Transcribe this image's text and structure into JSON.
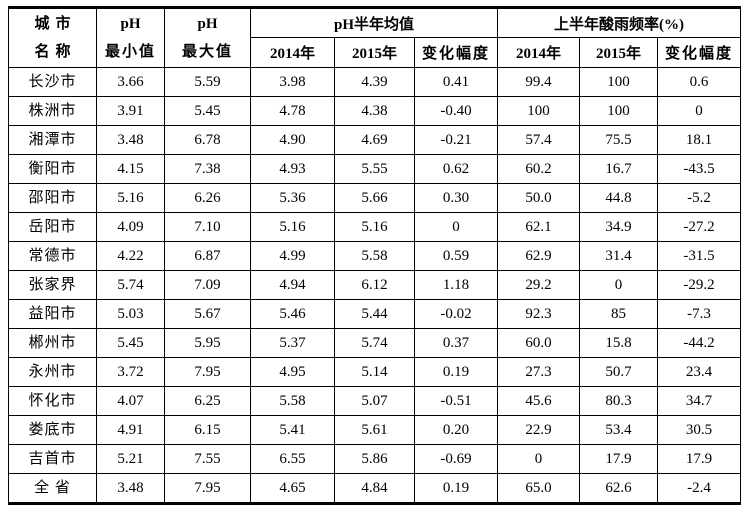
{
  "table": {
    "title_semantic": "pH与酸雨频率统计表",
    "header": {
      "city_line1": "城市",
      "city_line2": "名称",
      "ph_label": "pH",
      "min_label": "最小值",
      "max_label": "最大值",
      "ph_avg_group": "pH半年均值",
      "acid_rain_group": "上半年酸雨频率(%)",
      "year_2014": "2014年",
      "year_2015": "2015年",
      "change_label": "变化幅度"
    },
    "columns_semantic": [
      "城市名称",
      "pH最小值",
      "pH最大值",
      "pH半年均值2014年",
      "pH半年均值2015年",
      "pH半年均值变化幅度",
      "上半年酸雨频率2014年",
      "上半年酸雨频率2015年",
      "上半年酸雨频率变化幅度"
    ],
    "rows": [
      [
        "长沙市",
        "3.66",
        "5.59",
        "3.98",
        "4.39",
        "0.41",
        "99.4",
        "100",
        "0.6"
      ],
      [
        "株洲市",
        "3.91",
        "5.45",
        "4.78",
        "4.38",
        "-0.40",
        "100",
        "100",
        "0"
      ],
      [
        "湘潭市",
        "3.48",
        "6.78",
        "4.90",
        "4.69",
        "-0.21",
        "57.4",
        "75.5",
        "18.1"
      ],
      [
        "衡阳市",
        "4.15",
        "7.38",
        "4.93",
        "5.55",
        "0.62",
        "60.2",
        "16.7",
        "-43.5"
      ],
      [
        "邵阳市",
        "5.16",
        "6.26",
        "5.36",
        "5.66",
        "0.30",
        "50.0",
        "44.8",
        "-5.2"
      ],
      [
        "岳阳市",
        "4.09",
        "7.10",
        "5.16",
        "5.16",
        "0",
        "62.1",
        "34.9",
        "-27.2"
      ],
      [
        "常德市",
        "4.22",
        "6.87",
        "4.99",
        "5.58",
        "0.59",
        "62.9",
        "31.4",
        "-31.5"
      ],
      [
        "张家界",
        "5.74",
        "7.09",
        "4.94",
        "6.12",
        "1.18",
        "29.2",
        "0",
        "-29.2"
      ],
      [
        "益阳市",
        "5.03",
        "5.67",
        "5.46",
        "5.44",
        "-0.02",
        "92.3",
        "85",
        "-7.3"
      ],
      [
        "郴州市",
        "5.45",
        "5.95",
        "5.37",
        "5.74",
        "0.37",
        "60.0",
        "15.8",
        "-44.2"
      ],
      [
        "永州市",
        "3.72",
        "7.95",
        "4.95",
        "5.14",
        "0.19",
        "27.3",
        "50.7",
        "23.4"
      ],
      [
        "怀化市",
        "4.07",
        "6.25",
        "5.58",
        "5.07",
        "-0.51",
        "45.6",
        "80.3",
        "34.7"
      ],
      [
        "娄底市",
        "4.91",
        "6.15",
        "5.41",
        "5.61",
        "0.20",
        "22.9",
        "53.4",
        "30.5"
      ],
      [
        "吉首市",
        "5.21",
        "7.55",
        "6.55",
        "5.86",
        "-0.69",
        "0",
        "17.9",
        "17.9"
      ],
      [
        "全 省",
        "3.48",
        "7.95",
        "4.65",
        "4.84",
        "0.19",
        "65.0",
        "62.6",
        "-2.4"
      ]
    ],
    "colors": {
      "border": "#000000",
      "text": "#000000",
      "background": "#ffffff"
    }
  }
}
